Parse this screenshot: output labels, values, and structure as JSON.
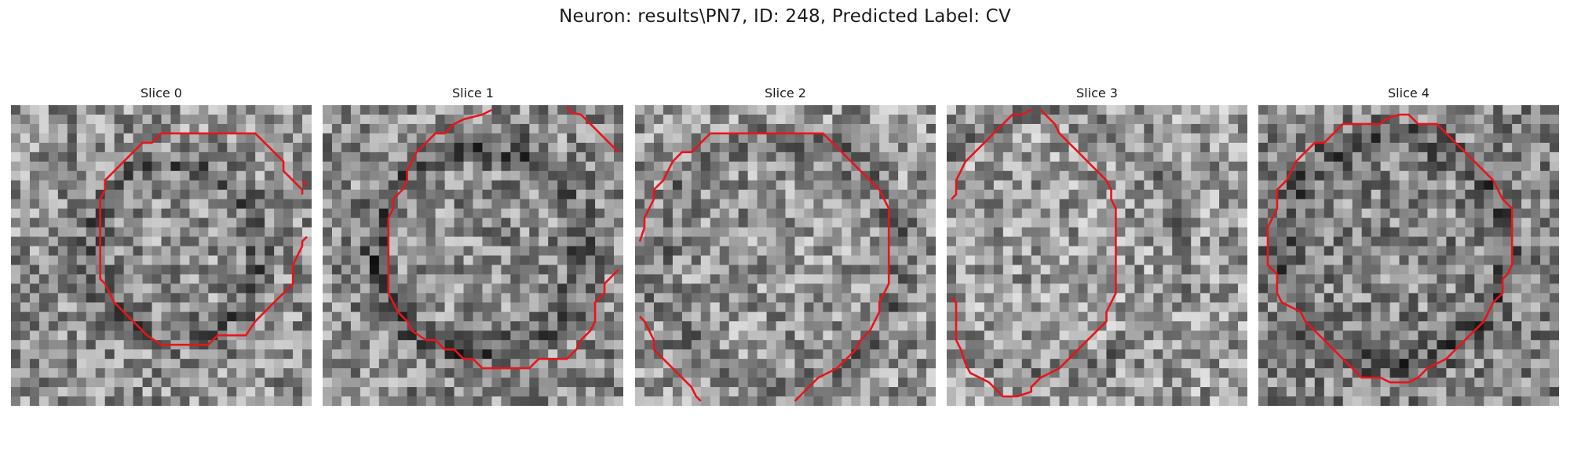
{
  "figure": {
    "title": "Neuron: results\\PN7, ID: 248, Predicted Label: CV"
  },
  "panels": [
    {
      "title": "Slice 0"
    },
    {
      "title": "Slice 1"
    },
    {
      "title": "Slice 2"
    },
    {
      "title": "Slice 3"
    },
    {
      "title": "Slice 4"
    }
  ],
  "colors": {
    "contour": "#e8141b",
    "background": "#ffffff"
  },
  "image": {
    "colormap": "grayscale",
    "description_of_content": "noisy grayscale microscopy patch with red segmentation contour"
  }
}
